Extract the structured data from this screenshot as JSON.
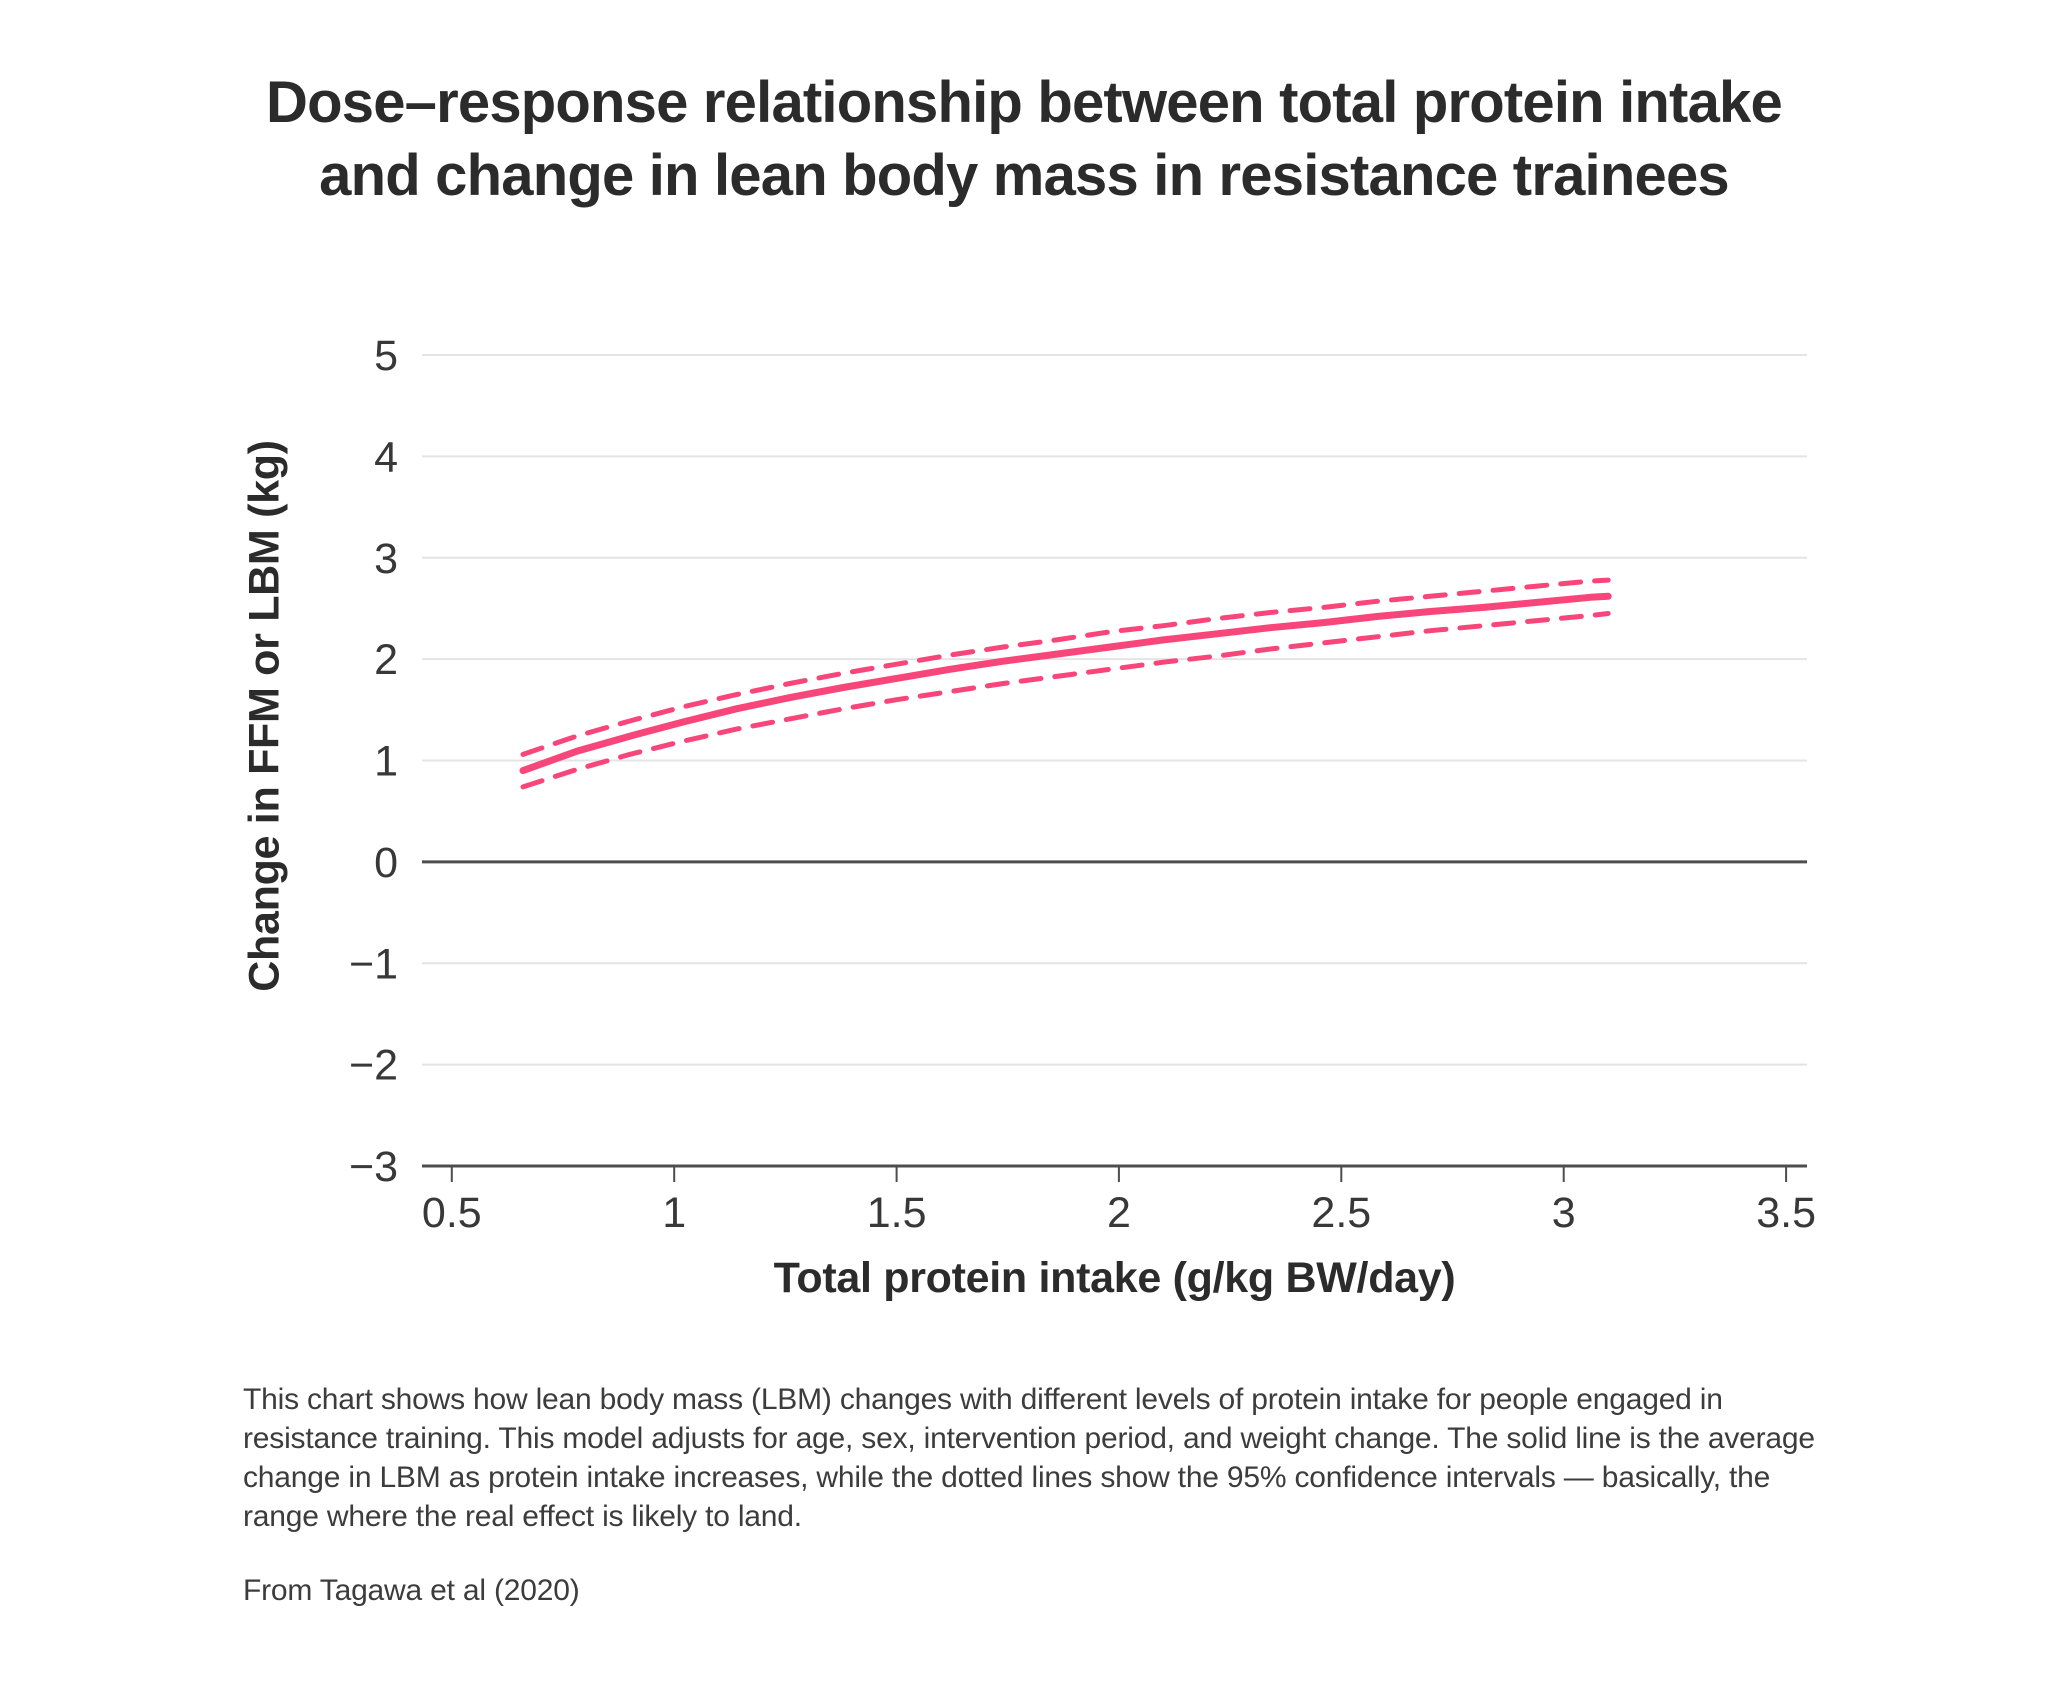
{
  "title_lines": [
    "Dose–response relationship between total protein intake",
    "and change in lean body mass in resistance trainees"
  ],
  "caption": "This chart shows how lean body mass (LBM) changes with different levels of protein intake for people engaged in resistance training. This model adjusts for age, sex, intervention period, and weight change. The solid line is the average change in LBM as protein intake increases, while the dotted lines show the 95% confidence intervals — basically, the range where the real effect is likely to land.",
  "attribution": "From Tagawa et al (2020)",
  "chart_data": {
    "type": "line",
    "title": "Dose–response relationship between total protein intake and change in lean body mass in resistance trainees",
    "xlabel": "Total protein intake (g/kg BW/day)",
    "ylabel": "Change in FFM or LBM (kg)",
    "xlim": [
      0.433,
      3.547
    ],
    "ylim": [
      -3,
      5
    ],
    "grid": "horizontal gridlines, zero line and bottom axis emphasized",
    "legend": "none",
    "xticks": [
      {
        "value": 0.5,
        "label": "0.5"
      },
      {
        "value": 1,
        "label": "1"
      },
      {
        "value": 1.5,
        "label": "1.5"
      },
      {
        "value": 2,
        "label": "2"
      },
      {
        "value": 2.5,
        "label": "2.5"
      },
      {
        "value": 3,
        "label": "3"
      },
      {
        "value": 3.5,
        "label": "3.5"
      }
    ],
    "yticks": [
      {
        "value": 5,
        "label": "5"
      },
      {
        "value": 4,
        "label": "4"
      },
      {
        "value": 3,
        "label": "3"
      },
      {
        "value": 2,
        "label": "2"
      },
      {
        "value": 1,
        "label": "1"
      },
      {
        "value": 0,
        "label": "0"
      },
      {
        "value": -1,
        "label": "−1"
      },
      {
        "value": -2,
        "label": "−2"
      },
      {
        "value": -3,
        "label": "−3"
      }
    ],
    "x": [
      0.66,
      0.78,
      0.9,
      1.02,
      1.14,
      1.26,
      1.38,
      1.5,
      1.62,
      1.74,
      1.86,
      1.98,
      2.1,
      2.22,
      2.34,
      2.46,
      2.58,
      2.7,
      2.82,
      2.94,
      3.06,
      3.1
    ],
    "series": [
      {
        "name": "ci-upper",
        "label": "95% CI upper bound",
        "style": "dashed",
        "y": [
          1.06,
          1.24,
          1.39,
          1.53,
          1.65,
          1.76,
          1.86,
          1.95,
          2.04,
          2.12,
          2.19,
          2.27,
          2.33,
          2.4,
          2.46,
          2.51,
          2.57,
          2.62,
          2.67,
          2.72,
          2.77,
          2.78
        ]
      },
      {
        "name": "mean",
        "label": "Average change in LBM",
        "style": "solid",
        "y": [
          0.9,
          1.09,
          1.24,
          1.38,
          1.51,
          1.62,
          1.72,
          1.81,
          1.9,
          1.98,
          2.05,
          2.12,
          2.19,
          2.25,
          2.31,
          2.36,
          2.42,
          2.47,
          2.51,
          2.56,
          2.61,
          2.62
        ]
      },
      {
        "name": "ci-lower",
        "label": "95% CI lower bound",
        "style": "dashed",
        "y": [
          0.74,
          0.91,
          1.06,
          1.19,
          1.31,
          1.41,
          1.51,
          1.6,
          1.68,
          1.76,
          1.83,
          1.9,
          1.97,
          2.03,
          2.1,
          2.16,
          2.22,
          2.28,
          2.33,
          2.38,
          2.43,
          2.45
        ]
      }
    ],
    "colors": {
      "line": "#f8467b",
      "grid": "#e4e4e4",
      "axis": "#4d4d4d",
      "tick_text": "#383838",
      "title_text": "#2b2b2b"
    }
  }
}
